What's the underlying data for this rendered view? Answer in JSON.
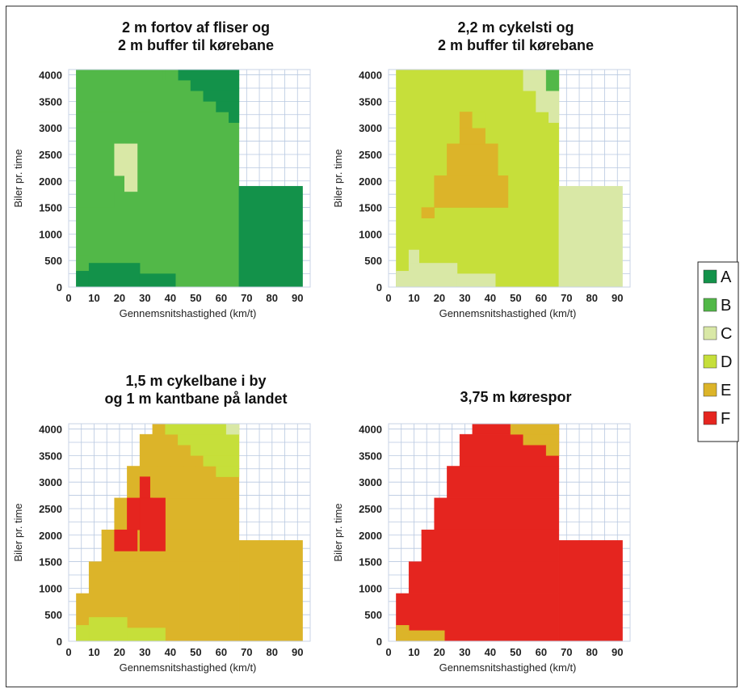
{
  "legend": [
    {
      "label": "A",
      "color": "#13924a"
    },
    {
      "label": "B",
      "color": "#52b848"
    },
    {
      "label": "C",
      "color": "#d9e8a6"
    },
    {
      "label": "D",
      "color": "#c6df3a"
    },
    {
      "label": "E",
      "color": "#dcb429"
    },
    {
      "label": "F",
      "color": "#e5251f"
    }
  ],
  "chart_data": [
    {
      "type": "heatmap",
      "title": [
        "2 m fortov af fliser og",
        "2 m buffer til kørebane"
      ],
      "xlabel": "Gennemsnitshastighed (km/t)",
      "ylabel": "Biler pr. time",
      "xlim": [
        0,
        95
      ],
      "ylim": [
        0,
        4100
      ],
      "xticks": [
        0,
        10,
        20,
        30,
        40,
        50,
        60,
        70,
        80,
        90
      ],
      "yticks": [
        0,
        500,
        1000,
        1500,
        2000,
        2500,
        3000,
        3500,
        4000
      ],
      "grid": true,
      "regions": [
        {
          "class": "B",
          "x": [
            3,
            67
          ],
          "y": [
            0,
            4100
          ]
        },
        {
          "class": "A",
          "x": [
            67,
            92
          ],
          "y": [
            0,
            1900
          ]
        },
        {
          "class": "B",
          "x": [
            3,
            7
          ],
          "y": [
            300,
            600
          ]
        },
        {
          "class": "B",
          "x": [
            3,
            8
          ],
          "y": [
            600,
            900
          ]
        },
        {
          "class": "B",
          "x": [
            3,
            13
          ],
          "y": [
            900,
            1500
          ]
        },
        {
          "class": "B",
          "x": [
            3,
            18
          ],
          "y": [
            1500,
            1800
          ]
        },
        {
          "class": "B",
          "x": [
            3,
            22
          ],
          "y": [
            1800,
            2100
          ]
        },
        {
          "class": "B",
          "x": [
            3,
            22
          ],
          "y": [
            2100,
            2700
          ]
        },
        {
          "class": "B",
          "x": [
            3,
            27
          ],
          "y": [
            2700,
            3300
          ]
        },
        {
          "class": "B",
          "x": [
            3,
            33
          ],
          "y": [
            3300,
            3900
          ]
        },
        {
          "class": "B",
          "x": [
            3,
            37
          ],
          "y": [
            3900,
            4100
          ]
        },
        {
          "class": "C",
          "x": [
            18,
            22
          ],
          "y": [
            2100,
            2700
          ]
        },
        {
          "class": "C",
          "x": [
            22,
            27
          ],
          "y": [
            1800,
            2700
          ]
        },
        {
          "class": "A",
          "x": [
            3,
            8
          ],
          "y": [
            0,
            300
          ]
        },
        {
          "class": "A",
          "x": [
            8,
            28
          ],
          "y": [
            0,
            450
          ]
        },
        {
          "class": "A",
          "x": [
            28,
            42
          ],
          "y": [
            0,
            250
          ]
        },
        {
          "class": "A",
          "x": [
            43,
            67
          ],
          "y": [
            3900,
            4100
          ]
        },
        {
          "class": "A",
          "x": [
            48,
            67
          ],
          "y": [
            3700,
            3900
          ]
        },
        {
          "class": "A",
          "x": [
            53,
            67
          ],
          "y": [
            3500,
            3700
          ]
        },
        {
          "class": "A",
          "x": [
            58,
            67
          ],
          "y": [
            3300,
            3500
          ]
        },
        {
          "class": "A",
          "x": [
            63,
            67
          ],
          "y": [
            3100,
            3300
          ]
        },
        {
          "class": "B",
          "x": [
            38,
            43
          ],
          "y": [
            3900,
            4100
          ]
        }
      ]
    },
    {
      "type": "heatmap",
      "title": [
        "2,2 m cykelsti og",
        "2 m buffer til kørebane"
      ],
      "xlabel": "Gennemsnitshastighed (km/t)",
      "ylabel": "Biler pr. time",
      "xlim": [
        0,
        95
      ],
      "ylim": [
        0,
        4100
      ],
      "xticks": [
        0,
        10,
        20,
        30,
        40,
        50,
        60,
        70,
        80,
        90
      ],
      "yticks": [
        0,
        500,
        1000,
        1500,
        2000,
        2500,
        3000,
        3500,
        4000
      ],
      "grid": true,
      "regions": [
        {
          "class": "D",
          "x": [
            3,
            67
          ],
          "y": [
            0,
            4100
          ]
        },
        {
          "class": "C",
          "x": [
            67,
            92
          ],
          "y": [
            0,
            1900
          ]
        },
        {
          "class": "C",
          "x": [
            3,
            8
          ],
          "y": [
            0,
            300
          ]
        },
        {
          "class": "C",
          "x": [
            8,
            27
          ],
          "y": [
            0,
            450
          ]
        },
        {
          "class": "C",
          "x": [
            27,
            42
          ],
          "y": [
            0,
            250
          ]
        },
        {
          "class": "C",
          "x": [
            8,
            12
          ],
          "y": [
            450,
            700
          ]
        },
        {
          "class": "C",
          "x": [
            53,
            67
          ],
          "y": [
            3700,
            4100
          ]
        },
        {
          "class": "C",
          "x": [
            58,
            67
          ],
          "y": [
            3300,
            3700
          ]
        },
        {
          "class": "C",
          "x": [
            63,
            67
          ],
          "y": [
            3100,
            3300
          ]
        },
        {
          "class": "B",
          "x": [
            62,
            67
          ],
          "y": [
            3700,
            4100
          ]
        },
        {
          "class": "E",
          "x": [
            13,
            18
          ],
          "y": [
            1300,
            1500
          ]
        },
        {
          "class": "E",
          "x": [
            18,
            47
          ],
          "y": [
            1500,
            2100
          ]
        },
        {
          "class": "E",
          "x": [
            23,
            43
          ],
          "y": [
            2100,
            2700
          ]
        },
        {
          "class": "E",
          "x": [
            28,
            38
          ],
          "y": [
            2700,
            3000
          ]
        },
        {
          "class": "E",
          "x": [
            28,
            33
          ],
          "y": [
            3000,
            3300
          ]
        },
        {
          "class": "D",
          "x": [
            33,
            38
          ],
          "y": [
            3000,
            3300
          ]
        }
      ]
    },
    {
      "type": "heatmap",
      "title": [
        "1,5 m cykelbane i by",
        "og 1 m kantbane på landet"
      ],
      "xlabel": "Gennemsnitshastighed (km/t)",
      "ylabel": "Biler pr. time",
      "xlim": [
        0,
        95
      ],
      "ylim": [
        0,
        4100
      ],
      "xticks": [
        0,
        10,
        20,
        30,
        40,
        50,
        60,
        70,
        80,
        90
      ],
      "yticks": [
        0,
        500,
        1000,
        1500,
        2000,
        2500,
        3000,
        3500,
        4000
      ],
      "grid": true,
      "regions": [
        {
          "class": "E",
          "x": [
            3,
            67
          ],
          "y": [
            0,
            900
          ]
        },
        {
          "class": "E",
          "x": [
            8,
            67
          ],
          "y": [
            900,
            1500
          ]
        },
        {
          "class": "E",
          "x": [
            13,
            67
          ],
          "y": [
            1500,
            2100
          ]
        },
        {
          "class": "E",
          "x": [
            18,
            67
          ],
          "y": [
            2100,
            2700
          ]
        },
        {
          "class": "E",
          "x": [
            23,
            67
          ],
          "y": [
            2700,
            3300
          ]
        },
        {
          "class": "E",
          "x": [
            28,
            67
          ],
          "y": [
            3300,
            3900
          ]
        },
        {
          "class": "E",
          "x": [
            33,
            67
          ],
          "y": [
            3900,
            4100
          ]
        },
        {
          "class": "E",
          "x": [
            67,
            92
          ],
          "y": [
            0,
            1900
          ]
        },
        {
          "class": "D",
          "x": [
            3,
            8
          ],
          "y": [
            0,
            300
          ]
        },
        {
          "class": "D",
          "x": [
            8,
            23
          ],
          "y": [
            0,
            450
          ]
        },
        {
          "class": "D",
          "x": [
            23,
            38
          ],
          "y": [
            0,
            250
          ]
        },
        {
          "class": "D",
          "x": [
            38,
            67
          ],
          "y": [
            3900,
            4100
          ]
        },
        {
          "class": "D",
          "x": [
            43,
            67
          ],
          "y": [
            3700,
            3900
          ]
        },
        {
          "class": "D",
          "x": [
            48,
            67
          ],
          "y": [
            3500,
            3700
          ]
        },
        {
          "class": "D",
          "x": [
            53,
            67
          ],
          "y": [
            3300,
            3500
          ]
        },
        {
          "class": "D",
          "x": [
            58,
            67
          ],
          "y": [
            3100,
            3300
          ]
        },
        {
          "class": "C",
          "x": [
            62,
            67
          ],
          "y": [
            3900,
            4100
          ]
        },
        {
          "class": "F",
          "x": [
            18,
            27
          ],
          "y": [
            1700,
            2100
          ]
        },
        {
          "class": "F",
          "x": [
            23,
            33
          ],
          "y": [
            2100,
            2700
          ]
        },
        {
          "class": "F",
          "x": [
            28,
            38
          ],
          "y": [
            1700,
            2700
          ]
        },
        {
          "class": "F",
          "x": [
            28,
            32
          ],
          "y": [
            2700,
            3100
          ]
        }
      ]
    },
    {
      "type": "heatmap",
      "title": [
        "3,75 m kørespor"
      ],
      "xlabel": "Gennemsnitshastighed (km/t)",
      "ylabel": "Biler pr. time",
      "xlim": [
        0,
        95
      ],
      "ylim": [
        0,
        4100
      ],
      "xticks": [
        0,
        10,
        20,
        30,
        40,
        50,
        60,
        70,
        80,
        90
      ],
      "yticks": [
        0,
        500,
        1000,
        1500,
        2000,
        2500,
        3000,
        3500,
        4000
      ],
      "grid": true,
      "regions": [
        {
          "class": "F",
          "x": [
            3,
            67
          ],
          "y": [
            0,
            900
          ]
        },
        {
          "class": "F",
          "x": [
            8,
            67
          ],
          "y": [
            900,
            1500
          ]
        },
        {
          "class": "F",
          "x": [
            13,
            67
          ],
          "y": [
            1500,
            2100
          ]
        },
        {
          "class": "F",
          "x": [
            18,
            67
          ],
          "y": [
            2100,
            2700
          ]
        },
        {
          "class": "F",
          "x": [
            23,
            67
          ],
          "y": [
            2700,
            3300
          ]
        },
        {
          "class": "F",
          "x": [
            28,
            67
          ],
          "y": [
            3300,
            3900
          ]
        },
        {
          "class": "F",
          "x": [
            33,
            67
          ],
          "y": [
            3900,
            4100
          ]
        },
        {
          "class": "F",
          "x": [
            67,
            92
          ],
          "y": [
            0,
            1900
          ]
        },
        {
          "class": "E",
          "x": [
            3,
            8
          ],
          "y": [
            0,
            300
          ]
        },
        {
          "class": "E",
          "x": [
            8,
            22
          ],
          "y": [
            0,
            200
          ]
        },
        {
          "class": "E",
          "x": [
            48,
            67
          ],
          "y": [
            3900,
            4100
          ]
        },
        {
          "class": "E",
          "x": [
            53,
            67
          ],
          "y": [
            3700,
            3900
          ]
        },
        {
          "class": "E",
          "x": [
            62,
            67
          ],
          "y": [
            3500,
            3700
          ]
        }
      ]
    }
  ]
}
